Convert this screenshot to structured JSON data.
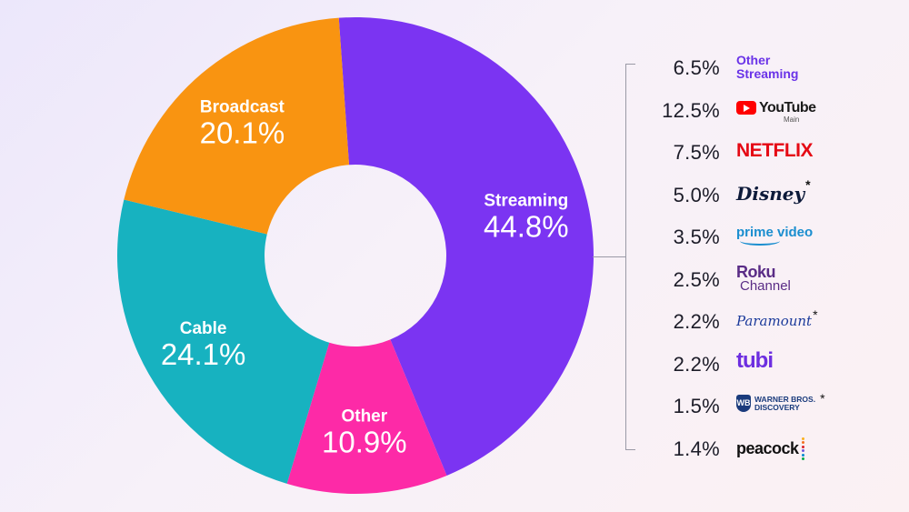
{
  "chart_data": {
    "type": "pie",
    "segments": [
      {
        "label": "Streaming",
        "value": 44.8,
        "display": "44.8%",
        "color": "#7b34f2"
      },
      {
        "label": "Other",
        "value": 10.9,
        "display": "10.9%",
        "color": "#fd2aa7"
      },
      {
        "label": "Cable",
        "value": 24.1,
        "display": "24.1%",
        "color": "#17b2c0"
      },
      {
        "label": "Broadcast",
        "value": 20.1,
        "display": "20.1%",
        "color": "#f99411"
      }
    ],
    "streaming_breakdown": [
      {
        "label": "Other Streaming",
        "value": 6.5,
        "display": "6.5%",
        "icon": "other-streaming-logo"
      },
      {
        "label": "YouTube",
        "value": 12.5,
        "display": "12.5%",
        "icon": "youtube-logo"
      },
      {
        "label": "Netflix",
        "value": 7.5,
        "display": "7.5%",
        "icon": "netflix-logo"
      },
      {
        "label": "Disney",
        "value": 5.0,
        "display": "5.0%",
        "icon": "disney-logo"
      },
      {
        "label": "prime video",
        "value": 3.5,
        "display": "3.5%",
        "icon": "prime-video-logo"
      },
      {
        "label": "Roku Channel",
        "value": 2.5,
        "display": "2.5%",
        "icon": "roku-channel-logo"
      },
      {
        "label": "Paramount",
        "value": 2.2,
        "display": "2.2%",
        "icon": "paramount-logo"
      },
      {
        "label": "tubi",
        "value": 2.2,
        "display": "2.2%",
        "icon": "tubi-logo"
      },
      {
        "label": "Warner Bros. Discovery",
        "value": 1.5,
        "display": "1.5%",
        "icon": "warner-bros-discovery-logo"
      },
      {
        "label": "peacock",
        "value": 1.4,
        "display": "1.4%",
        "icon": "peacock-logo"
      }
    ]
  },
  "brands": {
    "other_line1": "Other",
    "other_line2": "Streaming",
    "youtube_word": "YouTube",
    "youtube_sub": "Main",
    "netflix": "NETFLIX",
    "disney": "Disney",
    "prime": "prime video",
    "roku_top": "Roku",
    "roku_bottom": "Channel",
    "paramount": "Paramount",
    "tubi": "tubi",
    "wbd_line1": "WARNER BROS.",
    "wbd_line2": "DISCOVERY",
    "peacock": "peacock",
    "asterisk": "*"
  },
  "colors": {
    "peacock_dots": [
      "#fbb11e",
      "#f37120",
      "#d9222a",
      "#6e55dc",
      "#0089cf",
      "#06ac4b"
    ]
  }
}
